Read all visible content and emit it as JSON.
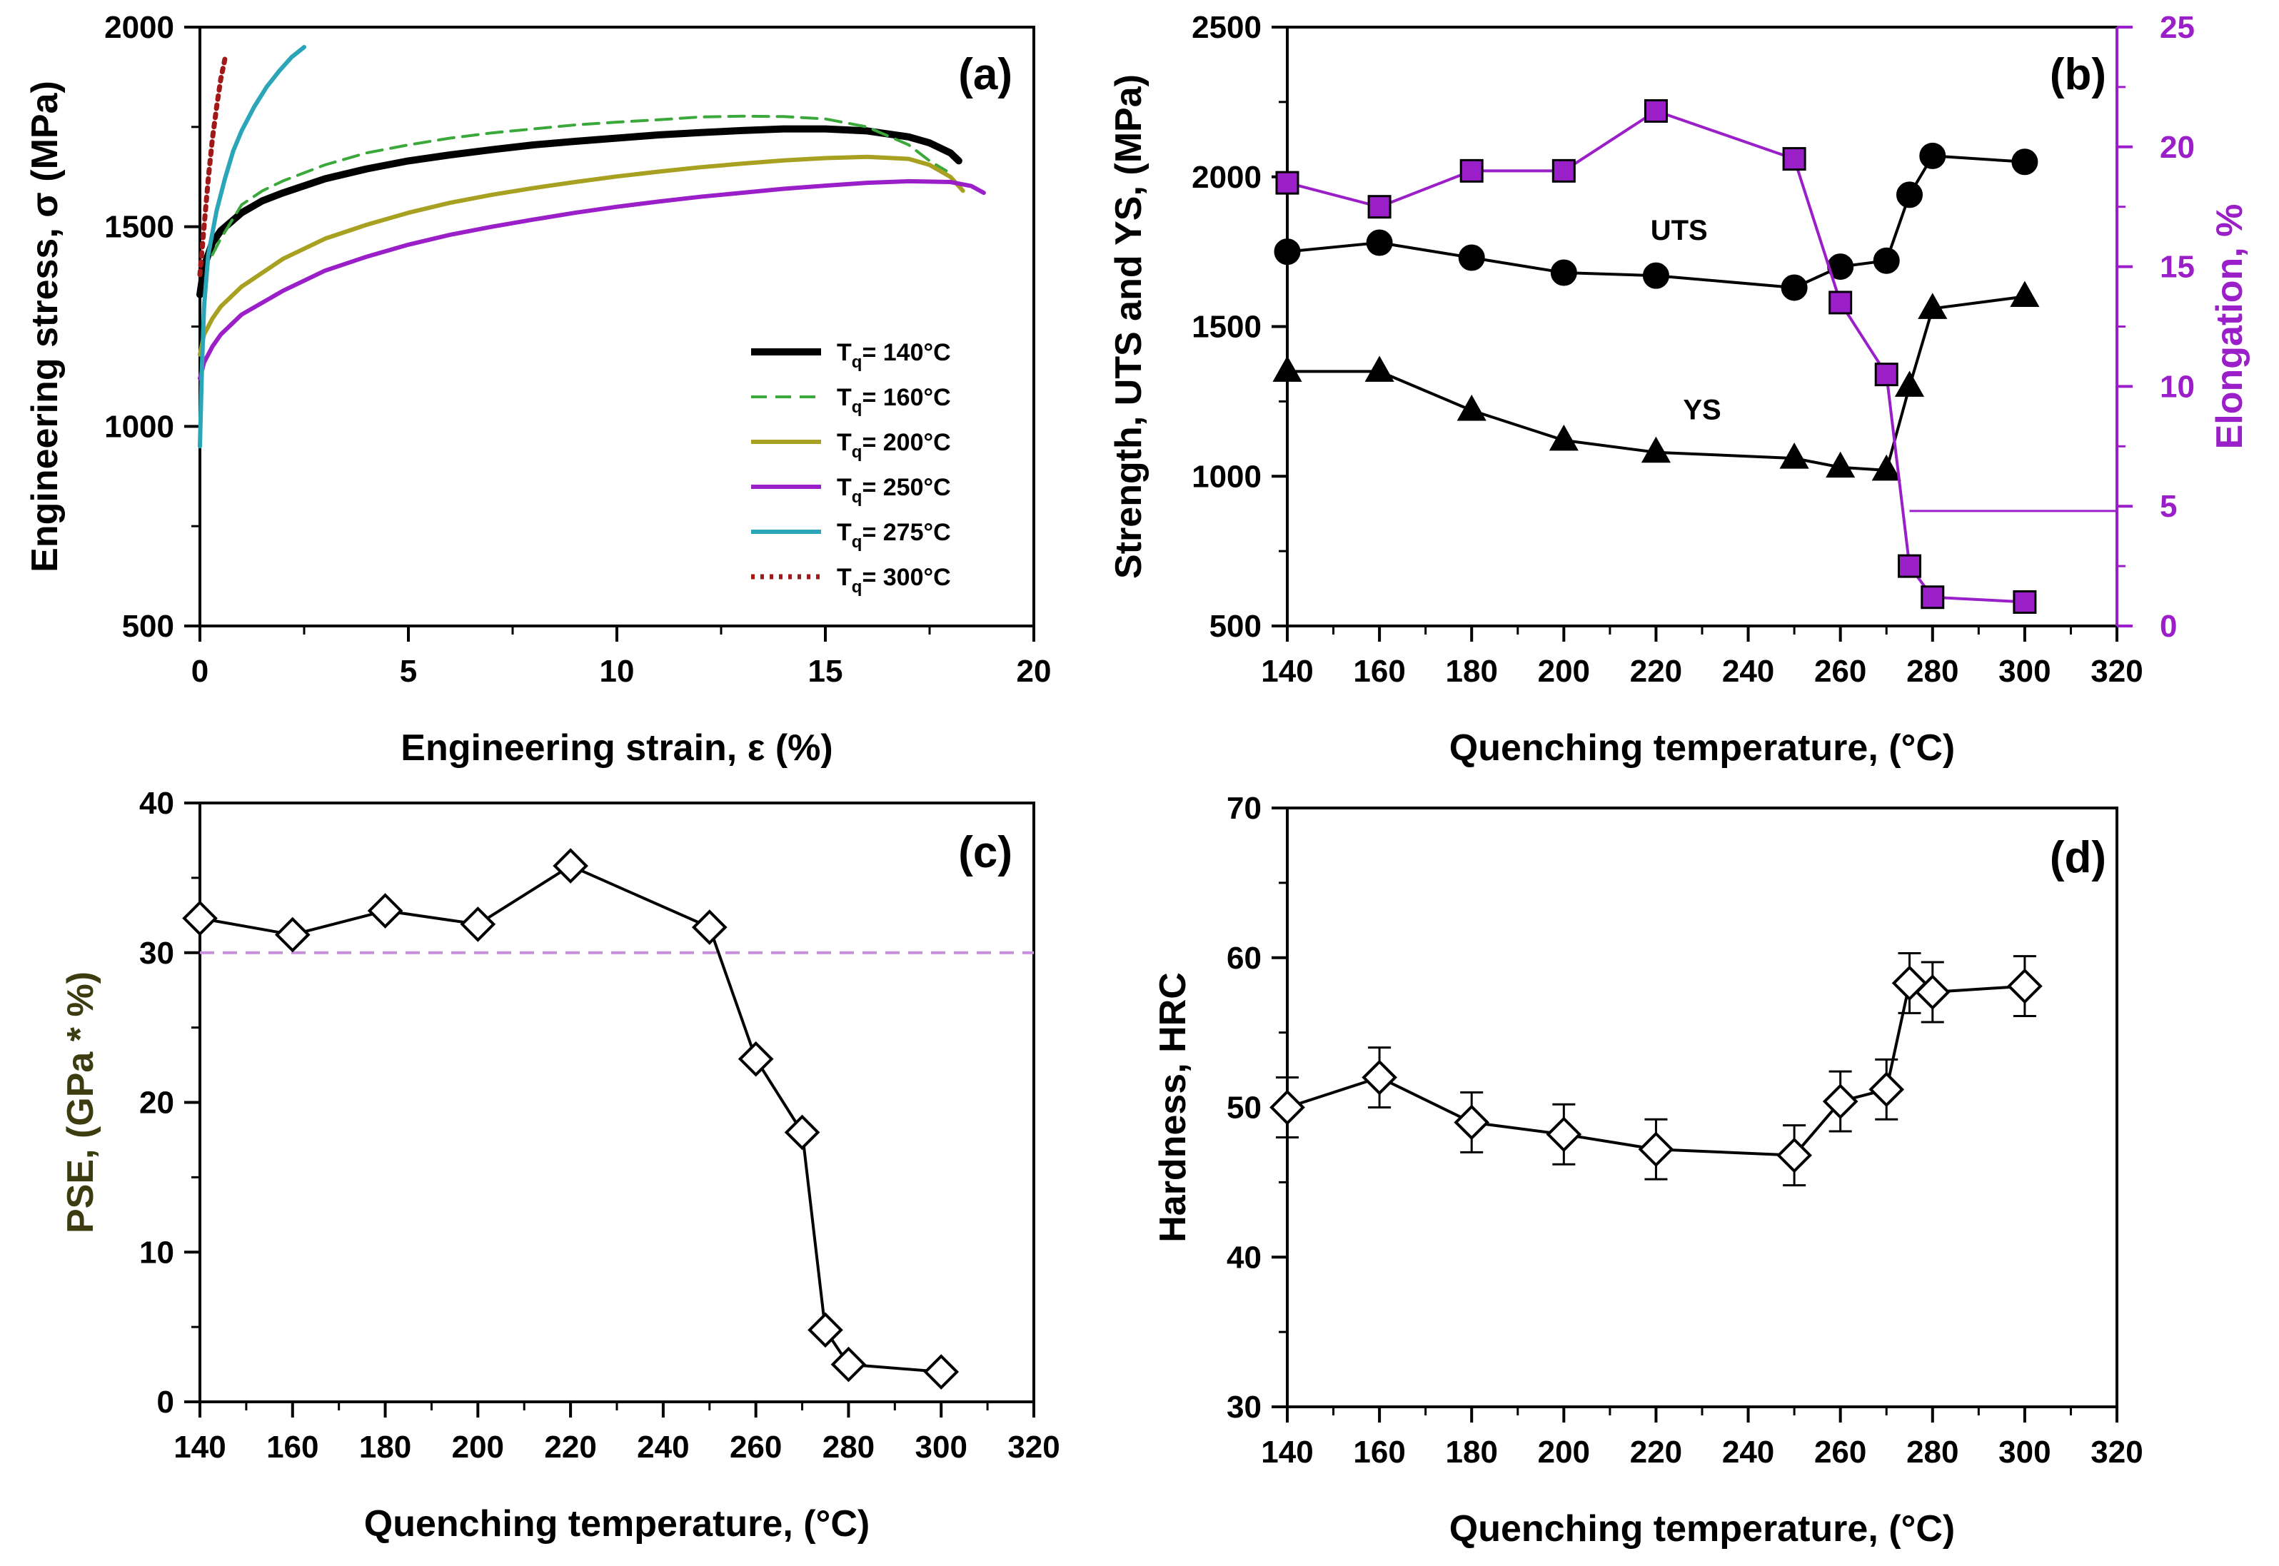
{
  "chart_data": [
    {
      "id": "a",
      "type": "line",
      "panel_label": "(a)",
      "xlabel": "Engineering strain, ε (%)",
      "ylabel": "Engineering stress, σ (MPa)",
      "xlim": [
        0,
        20
      ],
      "ylim": [
        500,
        2000
      ],
      "xticks": [
        0,
        5,
        10,
        15,
        20
      ],
      "yticks": [
        500,
        1000,
        1500,
        2000
      ],
      "legend_position": "bottom-right",
      "series": [
        {
          "name": "140°C",
          "color": "#000000",
          "style": "solid-thick",
          "x": [
            0,
            0.1,
            0.3,
            0.5,
            1,
            1.5,
            2,
            3,
            4,
            5,
            6,
            7,
            8,
            9,
            10,
            11,
            12,
            13,
            14,
            15,
            16,
            17,
            17.5,
            18,
            18.2
          ],
          "y": [
            1330,
            1400,
            1460,
            1490,
            1535,
            1565,
            1585,
            1620,
            1645,
            1665,
            1680,
            1693,
            1705,
            1714,
            1722,
            1730,
            1736,
            1741,
            1745,
            1745,
            1740,
            1725,
            1710,
            1685,
            1665
          ]
        },
        {
          "name": "160°C",
          "color": "#3aa83a",
          "style": "dashed",
          "x": [
            0.3,
            0.5,
            1,
            1.5,
            2,
            3,
            4,
            5,
            6,
            7,
            8,
            9,
            10,
            11,
            12,
            13,
            14,
            15,
            16,
            17,
            17.5,
            17.9
          ],
          "y": [
            1430,
            1470,
            1555,
            1590,
            1615,
            1655,
            1685,
            1705,
            1722,
            1735,
            1745,
            1755,
            1762,
            1768,
            1775,
            1777,
            1776,
            1770,
            1750,
            1705,
            1665,
            1640
          ]
        },
        {
          "name": "200°C",
          "color": "#a8a020",
          "style": "solid",
          "x": [
            0,
            0.1,
            0.3,
            0.5,
            1,
            2,
            3,
            4,
            5,
            6,
            7,
            8,
            9,
            10,
            11,
            12,
            13,
            14,
            15,
            16,
            17,
            17.5,
            18,
            18.3
          ],
          "y": [
            1180,
            1230,
            1270,
            1300,
            1350,
            1420,
            1470,
            1505,
            1535,
            1560,
            1580,
            1597,
            1612,
            1626,
            1638,
            1649,
            1658,
            1666,
            1672,
            1675,
            1670,
            1655,
            1625,
            1590
          ]
        },
        {
          "name": "250°C",
          "color": "#9b1fc8",
          "style": "solid",
          "x": [
            0,
            0.1,
            0.3,
            0.5,
            1,
            2,
            3,
            4,
            5,
            6,
            7,
            8,
            9,
            10,
            11,
            12,
            13,
            14,
            15,
            16,
            17,
            18,
            18.5,
            18.8
          ],
          "y": [
            1120,
            1160,
            1200,
            1230,
            1280,
            1340,
            1390,
            1425,
            1455,
            1480,
            1500,
            1518,
            1535,
            1550,
            1563,
            1575,
            1585,
            1595,
            1603,
            1610,
            1614,
            1612,
            1602,
            1585
          ]
        },
        {
          "name": "275°C",
          "color": "#2aa6b8",
          "style": "solid",
          "x": [
            0,
            0.05,
            0.1,
            0.2,
            0.4,
            0.6,
            0.8,
            1,
            1.3,
            1.6,
            1.9,
            2.2,
            2.5
          ],
          "y": [
            950,
            1150,
            1300,
            1430,
            1540,
            1620,
            1690,
            1740,
            1800,
            1850,
            1890,
            1925,
            1950
          ]
        },
        {
          "name": "300°C",
          "color": "#a01818",
          "style": "dotted",
          "x": [
            0,
            0.1,
            0.2,
            0.3,
            0.4,
            0.5,
            0.6
          ],
          "y": [
            1380,
            1500,
            1620,
            1720,
            1800,
            1870,
            1920
          ]
        }
      ]
    },
    {
      "id": "b",
      "type": "line",
      "panel_label": "(b)",
      "xlabel": "Quenching temperature, (°C)",
      "ylabel": "Strength, UTS and YS, (MPa)",
      "y2label": "Elongation, %",
      "xlim": [
        140,
        320
      ],
      "ylim": [
        500,
        2500
      ],
      "y2lim": [
        0,
        25
      ],
      "xticks": [
        140,
        160,
        180,
        200,
        220,
        240,
        260,
        280,
        300,
        320
      ],
      "yticks": [
        500,
        1000,
        1500,
        2000,
        2500
      ],
      "y2ticks": [
        0,
        5,
        10,
        15,
        20,
        25
      ],
      "annotations": {
        "uts": "UTS",
        "ys": "YS"
      },
      "series": [
        {
          "name": "UTS",
          "axis": "left",
          "marker": "circle",
          "color": "#000000",
          "x": [
            140,
            160,
            180,
            200,
            220,
            250,
            260,
            270,
            275,
            280,
            300
          ],
          "y": [
            1750,
            1780,
            1730,
            1680,
            1670,
            1630,
            1700,
            1720,
            1940,
            2070,
            2050
          ]
        },
        {
          "name": "YS",
          "axis": "left",
          "marker": "triangle",
          "color": "#000000",
          "x": [
            140,
            160,
            180,
            200,
            220,
            250,
            260,
            270,
            275,
            280,
            300
          ],
          "y": [
            1350,
            1350,
            1220,
            1120,
            1080,
            1060,
            1030,
            1020,
            1300,
            1560,
            1600
          ]
        },
        {
          "name": "Elongation",
          "axis": "right",
          "marker": "square",
          "color": "#9b1fc8",
          "x": [
            140,
            160,
            180,
            200,
            220,
            250,
            260,
            270,
            275,
            280,
            300
          ],
          "y": [
            18.5,
            17.5,
            19,
            19,
            21.5,
            19.5,
            13.5,
            10.5,
            2.5,
            1.2,
            1.0
          ]
        }
      ]
    },
    {
      "id": "c",
      "type": "line",
      "panel_label": "(c)",
      "xlabel": "Quenching temperature, (°C)",
      "ylabel": "PSE, (GPa * %)",
      "xlim": [
        140,
        320
      ],
      "ylim": [
        0,
        40
      ],
      "xticks": [
        140,
        160,
        180,
        200,
        220,
        240,
        260,
        280,
        300,
        320
      ],
      "yticks": [
        0,
        10,
        20,
        30,
        40
      ],
      "reference_line": 30,
      "series": [
        {
          "name": "PSE",
          "marker": "diamond",
          "color": "#000000",
          "x": [
            140,
            160,
            180,
            200,
            220,
            250,
            260,
            270,
            275,
            280,
            300
          ],
          "y": [
            32.3,
            31.2,
            32.8,
            31.9,
            35.8,
            31.7,
            22.9,
            18.0,
            4.8,
            2.5,
            2.0
          ]
        }
      ]
    },
    {
      "id": "d",
      "type": "line",
      "panel_label": "(d)",
      "xlabel": "Quenching temperature, (°C)",
      "ylabel": "Hardness, HRC",
      "xlim": [
        140,
        320
      ],
      "ylim": [
        30,
        70
      ],
      "xticks": [
        140,
        160,
        180,
        200,
        220,
        240,
        260,
        280,
        300,
        320
      ],
      "yticks": [
        30,
        40,
        50,
        60,
        70
      ],
      "series": [
        {
          "name": "Hardness",
          "marker": "diamond",
          "color": "#000000",
          "x": [
            140,
            160,
            180,
            200,
            220,
            250,
            260,
            270,
            275,
            280,
            300
          ],
          "y": [
            50,
            52,
            49,
            48.2,
            47.2,
            46.8,
            50.4,
            51.2,
            58.3,
            57.7,
            58.1
          ],
          "err": [
            2,
            2,
            2,
            2,
            2,
            2,
            2,
            2,
            2,
            2,
            2
          ]
        }
      ]
    }
  ]
}
